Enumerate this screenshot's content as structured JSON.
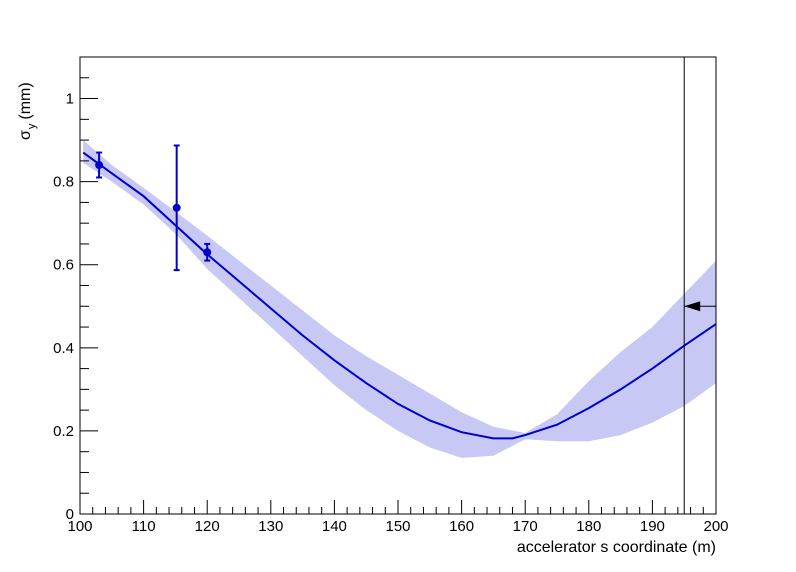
{
  "chart_data": {
    "type": "line",
    "xlabel": "accelerator s coordinate (m)",
    "ylabel_symbol": "σ",
    "ylabel_subscript": "y",
    "ylabel_unit": "(mm)",
    "xlim": [
      100,
      200
    ],
    "ylim": [
      0,
      1.1
    ],
    "x_ticks": [
      100,
      110,
      120,
      130,
      140,
      150,
      160,
      170,
      180,
      190,
      200
    ],
    "y_ticks": [
      0,
      0.2,
      0.4,
      0.6,
      0.8,
      1
    ],
    "x_tick_labels": [
      "100",
      "110",
      "120",
      "130",
      "140",
      "150",
      "160",
      "170",
      "180",
      "190",
      "200"
    ],
    "y_tick_labels": [
      "0",
      "0.2",
      "0.4",
      "0.6",
      "0.8",
      "1"
    ],
    "grid": false,
    "colors": {
      "series": "#0000cc",
      "band": "#c8c8f5",
      "frame": "#000000"
    },
    "series": [
      {
        "kind": "fit-line",
        "x": [
          100.5,
          105,
          110,
          115,
          120,
          125,
          130,
          135,
          140,
          145,
          150,
          155,
          160,
          165,
          168,
          170,
          175,
          180,
          185,
          190,
          195,
          200
        ],
        "y": [
          0.87,
          0.82,
          0.765,
          0.695,
          0.625,
          0.56,
          0.495,
          0.43,
          0.37,
          0.315,
          0.265,
          0.225,
          0.197,
          0.182,
          0.182,
          0.19,
          0.215,
          0.255,
          0.3,
          0.35,
          0.405,
          0.457
        ]
      },
      {
        "kind": "confidence-band",
        "x": [
          100.5,
          105,
          110,
          115,
          120,
          125,
          130,
          135,
          140,
          145,
          150,
          155,
          160,
          165,
          170,
          175,
          180,
          185,
          190,
          195,
          200
        ],
        "upper": [
          0.9,
          0.84,
          0.785,
          0.728,
          0.67,
          0.61,
          0.55,
          0.49,
          0.43,
          0.38,
          0.335,
          0.29,
          0.245,
          0.21,
          0.195,
          0.24,
          0.32,
          0.39,
          0.45,
          0.53,
          0.61
        ],
        "lower": [
          0.845,
          0.8,
          0.745,
          0.675,
          0.59,
          0.52,
          0.45,
          0.38,
          0.31,
          0.25,
          0.2,
          0.16,
          0.135,
          0.14,
          0.18,
          0.175,
          0.175,
          0.19,
          0.22,
          0.26,
          0.315
        ]
      },
      {
        "kind": "measurements",
        "points": [
          {
            "x": 103,
            "y": 0.84,
            "err": 0.03
          },
          {
            "x": 115.2,
            "y": 0.737,
            "err": 0.15
          },
          {
            "x": 120,
            "y": 0.63,
            "err": 0.02
          }
        ]
      }
    ],
    "annotations": [
      {
        "kind": "vertical-line",
        "x": 195
      },
      {
        "kind": "arrow-marker",
        "x": 195,
        "y": 0.5,
        "direction": "left"
      }
    ]
  }
}
